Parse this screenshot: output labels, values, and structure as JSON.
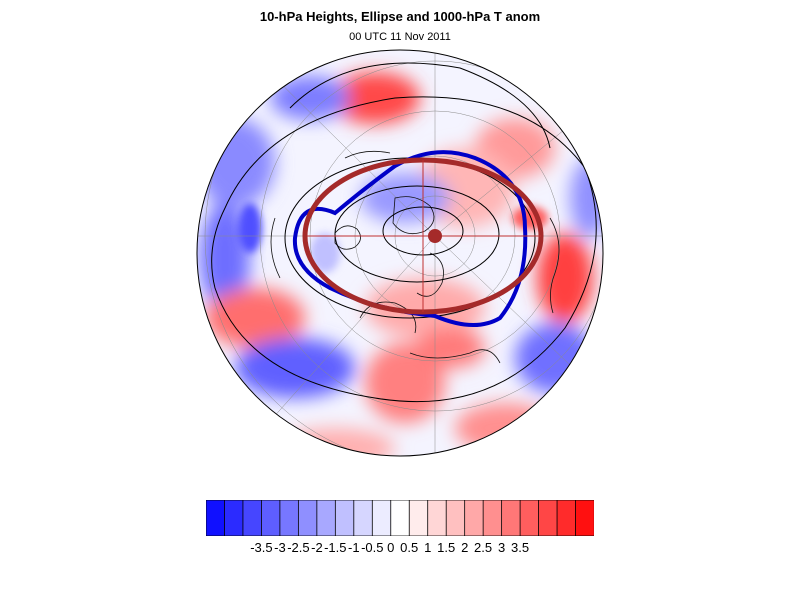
{
  "title": "10-hPa Heights, Ellipse and 1000-hPa T anom",
  "subtitle": "00 UTC 11 Nov 2011",
  "map": {
    "projection": "polar stereographic (North Pole)",
    "field": "1000-hPa temperature anomaly (shaded)",
    "contours": "10-hPa geopotential height",
    "ellipse_color": "#a52a2a",
    "vortex_edge_color": "#0000c8",
    "center_color": "#a52a2a"
  },
  "colorbar": {
    "colors": [
      "#1010ff",
      "#2b2bff",
      "#4646ff",
      "#5e5eff",
      "#7777ff",
      "#8f8fff",
      "#a8a8ff",
      "#c0c0ff",
      "#d6d6ff",
      "#ececff",
      "#ffffff",
      "#ffecec",
      "#ffd6d6",
      "#ffc0c0",
      "#ffa8a8",
      "#ff8f8f",
      "#ff7777",
      "#ff5e5e",
      "#ff4646",
      "#ff2b2b",
      "#ff1010"
    ],
    "ticks": [
      "-3.5",
      "-3",
      "-2.5",
      "-2",
      "-1.5",
      "-1",
      "-0.5",
      "0",
      "0.5",
      "1",
      "1.5",
      "2",
      "2.5",
      "3",
      "3.5"
    ]
  }
}
